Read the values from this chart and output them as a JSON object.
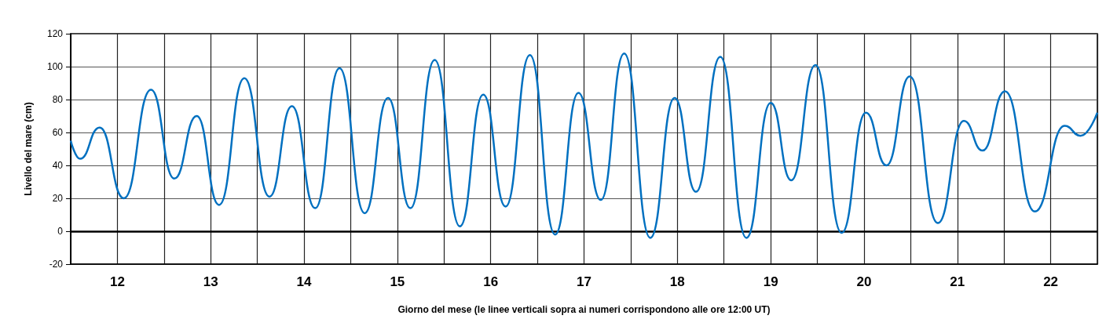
{
  "chart_data": {
    "type": "line",
    "xlabel": "Giorno del mese (le linee verticali sopra ai numeri corrispondono alle ore 12:00 UT)",
    "ylabel": "Livello del mare (cm)",
    "x": [
      11.5,
      11.6,
      11.81,
      12.07,
      12.36,
      12.61,
      12.85,
      13.09,
      13.36,
      13.63,
      13.87,
      14.12,
      14.38,
      14.65,
      14.9,
      15.14,
      15.4,
      15.67,
      15.92,
      16.16,
      16.42,
      16.69,
      16.94,
      17.18,
      17.43,
      17.71,
      17.97,
      18.2,
      18.46,
      18.74,
      19.0,
      19.22,
      19.48,
      19.76,
      20.02,
      20.24,
      20.49,
      20.79,
      21.07,
      21.27,
      21.51,
      21.83,
      22.15,
      22.32,
      22.5
    ],
    "series": [
      {
        "color": "#0070c0",
        "values": [
          55,
          44,
          63,
          20,
          86,
          32,
          70,
          16,
          93,
          21,
          76,
          14,
          99,
          11,
          81,
          14,
          104,
          3,
          83,
          15,
          107,
          -2,
          84,
          19,
          108,
          -4,
          81,
          24,
          106,
          -4,
          78,
          31,
          101,
          -1,
          72,
          40,
          94,
          5,
          67,
          49,
          85,
          12,
          64,
          58,
          72
        ]
      }
    ],
    "xlim": [
      11.5,
      22.5
    ],
    "xticks": [
      {
        "value": 11.5,
        "label": null
      },
      12,
      {
        "value": 12.5,
        "label": null
      },
      13,
      {
        "value": 13.5,
        "label": null
      },
      14,
      {
        "value": 14.5,
        "label": null
      },
      15,
      {
        "value": 15.5,
        "label": null
      },
      16,
      {
        "value": 16.5,
        "label": null
      },
      17,
      {
        "value": 17.5,
        "label": null
      },
      18,
      {
        "value": 18.5,
        "label": null
      },
      19,
      {
        "value": 19.5,
        "label": null
      },
      20,
      {
        "value": 20.5,
        "label": null
      },
      21,
      {
        "value": 21.5,
        "label": null
      },
      22,
      {
        "value": 22.5,
        "label": null
      }
    ],
    "ylim": [
      -20,
      120
    ],
    "yticks": [
      -20,
      0,
      20,
      40,
      60,
      80,
      100,
      120
    ],
    "ref_lines": [
      {
        "axis": "y",
        "value": 0,
        "color": "#000000"
      }
    ],
    "grid": true,
    "marker": "none",
    "line_style": "solid"
  }
}
